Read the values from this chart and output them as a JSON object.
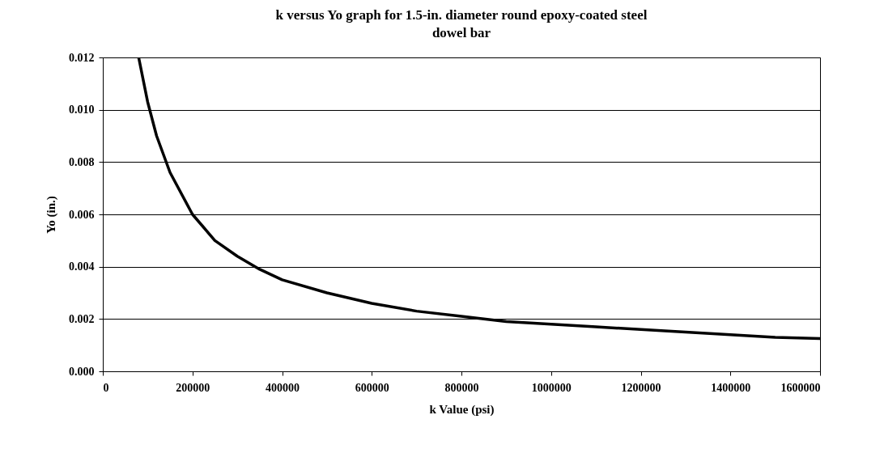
{
  "chart_data": {
    "type": "line",
    "title": "k versus Yo graph for 1.5-in. diameter round epoxy-coated steel dowel bar",
    "xlabel": "k Value (psi)",
    "ylabel": "Yo (in.)",
    "x": [
      80000,
      100000,
      120000,
      150000,
      200000,
      250000,
      300000,
      350000,
      400000,
      500000,
      600000,
      700000,
      800000,
      900000,
      1000000,
      1100000,
      1200000,
      1300000,
      1400000,
      1500000,
      1600000
    ],
    "series": [
      {
        "color": "#000000",
        "values": [
          0.012,
          0.0103,
          0.009,
          0.0076,
          0.006,
          0.005,
          0.0044,
          0.0039,
          0.0035,
          0.003,
          0.0026,
          0.0023,
          0.0021,
          0.0019,
          0.0018,
          0.0017,
          0.0016,
          0.0015,
          0.0014,
          0.0013,
          0.00125
        ]
      }
    ],
    "xlim": [
      0,
      1600000
    ],
    "xticks": [
      0,
      200000,
      400000,
      600000,
      800000,
      1000000,
      1200000,
      1400000,
      1600000
    ],
    "ylim": [
      0,
      0.012
    ],
    "yticks": [
      {
        "value": 0,
        "label": "0.000"
      },
      {
        "value": 0.002,
        "label": "0.002"
      },
      {
        "value": 0.004,
        "label": "0.004"
      },
      {
        "value": 0.006,
        "label": "0.006"
      },
      {
        "value": 0.008,
        "label": "0.008"
      },
      {
        "value": 0.01,
        "label": "0.010"
      },
      {
        "value": 0.012,
        "label": "0.012"
      }
    ],
    "grid": "y",
    "marker": "none",
    "line_style": "solid"
  }
}
